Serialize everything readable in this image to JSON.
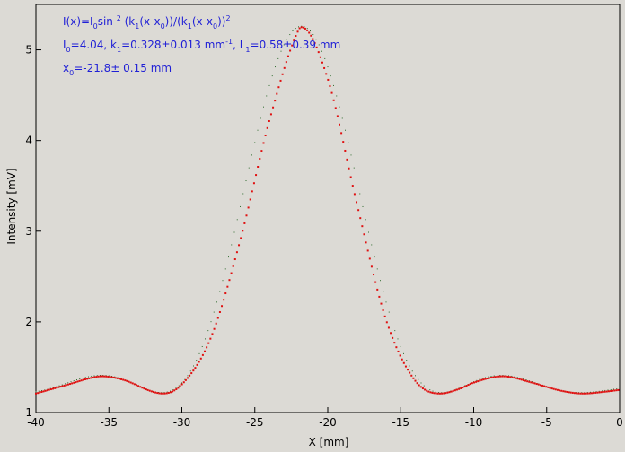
{
  "chart_data": {
    "type": "scatter",
    "xlabel": "X [mm]",
    "ylabel": "Intensity [mV]",
    "xlim": [
      -40,
      0
    ],
    "ylim": [
      1,
      5.5
    ],
    "x_ticks": [
      -40,
      -35,
      -30,
      -25,
      -20,
      -15,
      -10,
      -5,
      0
    ],
    "y_ticks": [
      1,
      2,
      3,
      4,
      5
    ],
    "grid": false,
    "colors": {
      "data": "#e01010",
      "fit": "#2e6b2e",
      "annotation": "#1f1fd6"
    },
    "annotation": {
      "line1": {
        "a": "I(x)=I",
        "s1": "0",
        "b": "sin ",
        "sup1": "2",
        "c": " (k",
        "s2": "1",
        "d": "(x-x",
        "s3": "0",
        "e": "))/(k",
        "s4": "1",
        "f": "(x-x",
        "s5": "0",
        "g": "))",
        "sup2": "2"
      },
      "line2": {
        "a": "I",
        "s1": "0",
        "b": "=4.04,  k",
        "s2": "1",
        "c": "=0.328±0.013 mm",
        "sup1": "-1",
        "d": ",   L",
        "s3": "1",
        "e": "=0.58±0.39 mm"
      },
      "line3": {
        "a": "x",
        "s1": "0",
        "b": "=-21.8±   0.15 mm"
      }
    },
    "fit_params": {
      "I0": 4.04,
      "k1": 0.328,
      "L1": 0.58,
      "x0": -21.8,
      "offset": 1.22
    },
    "series": [
      {
        "x": [
          -40,
          -38,
          -36,
          -35.5,
          -34,
          -32,
          -31.3,
          -30,
          -28,
          -26,
          -24,
          -22,
          -21.8,
          -20,
          -18,
          -16,
          -14,
          -12.3,
          -11,
          -10,
          -8,
          -6,
          -4,
          -2.5,
          -1,
          0
        ],
        "y": [
          1.21,
          1.3,
          1.39,
          1.4,
          1.36,
          1.23,
          1.21,
          1.31,
          1.83,
          2.9,
          4.22,
          5.22,
          5.25,
          4.68,
          3.3,
          2.02,
          1.35,
          1.21,
          1.26,
          1.33,
          1.4,
          1.33,
          1.24,
          1.21,
          1.23,
          1.25
        ]
      }
    ]
  }
}
